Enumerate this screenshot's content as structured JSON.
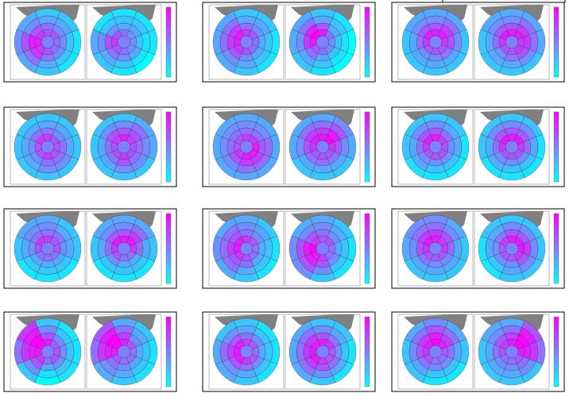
{
  "chart_data": {
    "type": "polar-heatmap",
    "vlim": [
      0,
      9
    ],
    "colors": [
      "#00ffff",
      "#ff00ff"
    ],
    "panels": [
      {
        "plots": [
          {
            "values": [
              [
                6,
                6,
                5,
                5,
                6,
                7,
                8,
                7
              ],
              [
                5,
                4,
                4,
                4,
                5,
                7,
                8,
                6
              ],
              [
                3,
                3,
                2,
                2,
                3,
                5,
                6,
                4
              ],
              [
                2,
                2,
                1,
                1,
                2,
                3,
                4,
                3
              ]
            ]
          },
          {
            "values": [
              [
                5,
                4,
                4,
                4,
                5,
                6,
                7,
                6
              ],
              [
                3,
                3,
                2,
                3,
                4,
                5,
                6,
                4
              ],
              [
                2,
                2,
                1,
                1,
                2,
                3,
                4,
                2
              ],
              [
                1,
                1,
                1,
                0,
                1,
                2,
                3,
                1
              ]
            ]
          }
        ]
      },
      {
        "plots": [
          {
            "values": [
              [
                7,
                6,
                5,
                5,
                6,
                7,
                8,
                8
              ],
              [
                5,
                4,
                3,
                3,
                4,
                6,
                7,
                7
              ],
              [
                3,
                3,
                2,
                2,
                3,
                4,
                5,
                5
              ],
              [
                2,
                2,
                1,
                1,
                2,
                3,
                3,
                3
              ]
            ]
          },
          {
            "values": [
              [
                8,
                5,
                4,
                4,
                5,
                6,
                8,
                9
              ],
              [
                6,
                3,
                2,
                2,
                3,
                5,
                7,
                8
              ],
              [
                3,
                2,
                1,
                1,
                2,
                3,
                4,
                5
              ],
              [
                2,
                1,
                0,
                0,
                1,
                2,
                3,
                3
              ]
            ]
          }
        ]
      },
      {
        "plots": [
          {
            "values": [
              [
                8,
                8,
                7,
                6,
                6,
                6,
                7,
                8
              ],
              [
                6,
                7,
                6,
                5,
                4,
                4,
                5,
                6
              ],
              [
                4,
                5,
                4,
                3,
                3,
                3,
                3,
                4
              ],
              [
                3,
                3,
                2,
                2,
                2,
                2,
                2,
                3
              ]
            ]
          },
          {
            "values": [
              [
                8,
                8,
                7,
                7,
                6,
                6,
                7,
                8
              ],
              [
                6,
                7,
                7,
                6,
                5,
                4,
                5,
                6
              ],
              [
                4,
                5,
                5,
                4,
                3,
                3,
                3,
                4
              ],
              [
                3,
                3,
                3,
                2,
                2,
                2,
                2,
                3
              ]
            ]
          }
        ]
      },
      {
        "plots": [
          {
            "values": [
              [
                7,
                6,
                6,
                6,
                7,
                6,
                6,
                7
              ],
              [
                5,
                4,
                5,
                5,
                5,
                4,
                4,
                5
              ],
              [
                3,
                3,
                3,
                4,
                4,
                3,
                3,
                3
              ],
              [
                2,
                2,
                2,
                2,
                2,
                2,
                2,
                2
              ]
            ]
          },
          {
            "values": [
              [
                8,
                7,
                6,
                6,
                7,
                6,
                6,
                7
              ],
              [
                6,
                6,
                5,
                5,
                6,
                5,
                5,
                6
              ],
              [
                4,
                5,
                4,
                4,
                4,
                3,
                3,
                4
              ],
              [
                2,
                3,
                3,
                2,
                2,
                2,
                2,
                2
              ]
            ]
          }
        ]
      },
      {
        "plots": [
          {
            "values": [
              [
                7,
                7,
                8,
                8,
                8,
                7,
                6,
                6
              ],
              [
                5,
                5,
                6,
                7,
                7,
                6,
                5,
                5
              ],
              [
                4,
                4,
                5,
                5,
                5,
                4,
                4,
                4
              ],
              [
                3,
                3,
                3,
                3,
                3,
                3,
                3,
                3
              ]
            ]
          },
          {
            "values": [
              [
                8,
                9,
                7,
                6,
                6,
                6,
                7,
                8
              ],
              [
                7,
                8,
                6,
                5,
                5,
                5,
                6,
                7
              ],
              [
                5,
                6,
                4,
                3,
                3,
                3,
                4,
                5
              ],
              [
                3,
                4,
                3,
                2,
                2,
                2,
                3,
                3
              ]
            ]
          }
        ]
      },
      {
        "plots": [
          {
            "values": [
              [
                8,
                7,
                6,
                6,
                6,
                6,
                7,
                8
              ],
              [
                6,
                5,
                4,
                4,
                4,
                4,
                5,
                6
              ],
              [
                4,
                3,
                3,
                2,
                2,
                3,
                3,
                4
              ],
              [
                2,
                2,
                1,
                1,
                1,
                1,
                2,
                2
              ]
            ]
          },
          {
            "values": [
              [
                8,
                8,
                7,
                6,
                6,
                6,
                7,
                8
              ],
              [
                6,
                6,
                5,
                4,
                4,
                4,
                5,
                6
              ],
              [
                4,
                4,
                3,
                2,
                2,
                3,
                3,
                4
              ],
              [
                2,
                2,
                1,
                1,
                1,
                1,
                2,
                2
              ]
            ]
          }
        ]
      },
      {
        "plots": [
          {
            "values": [
              [
                7,
                6,
                6,
                5,
                5,
                5,
                6,
                7
              ],
              [
                5,
                5,
                4,
                3,
                3,
                3,
                4,
                5
              ],
              [
                4,
                3,
                3,
                2,
                2,
                2,
                3,
                4
              ],
              [
                3,
                2,
                2,
                1,
                1,
                1,
                2,
                3
              ]
            ]
          },
          {
            "values": [
              [
                8,
                8,
                7,
                5,
                5,
                6,
                7,
                8
              ],
              [
                6,
                7,
                5,
                3,
                3,
                4,
                5,
                6
              ],
              [
                4,
                5,
                3,
                2,
                2,
                2,
                3,
                4
              ],
              [
                3,
                3,
                2,
                1,
                1,
                1,
                2,
                3
              ]
            ]
          }
        ]
      },
      {
        "plots": [
          {
            "values": [
              [
                7,
                6,
                5,
                5,
                6,
                7,
                8,
                8
              ],
              [
                5,
                4,
                3,
                3,
                5,
                6,
                7,
                6
              ],
              [
                4,
                3,
                2,
                2,
                3,
                5,
                5,
                5
              ],
              [
                3,
                2,
                1,
                1,
                2,
                3,
                4,
                3
              ]
            ]
          },
          {
            "values": [
              [
                6,
                6,
                5,
                5,
                7,
                8,
                9,
                7
              ],
              [
                5,
                4,
                3,
                4,
                6,
                8,
                8,
                6
              ],
              [
                4,
                3,
                2,
                2,
                4,
                6,
                6,
                4
              ],
              [
                3,
                2,
                1,
                1,
                2,
                4,
                4,
                3
              ]
            ]
          }
        ]
      },
      {
        "plots": [
          {
            "values": [
              [
                8,
                7,
                7,
                6,
                6,
                6,
                7,
                8
              ],
              [
                7,
                6,
                5,
                4,
                4,
                5,
                6,
                7
              ],
              [
                5,
                4,
                3,
                3,
                3,
                3,
                4,
                5
              ],
              [
                4,
                3,
                2,
                2,
                2,
                2,
                3,
                4
              ]
            ]
          },
          {
            "values": [
              [
                8,
                8,
                8,
                7,
                6,
                6,
                6,
                7
              ],
              [
                6,
                6,
                7,
                6,
                4,
                4,
                4,
                5
              ],
              [
                4,
                4,
                4,
                4,
                3,
                2,
                3,
                3
              ],
              [
                2,
                2,
                2,
                2,
                2,
                1,
                1,
                2
              ]
            ]
          }
        ]
      },
      {
        "plots": [
          {
            "values": [
              [
                8,
                6,
                6,
                6,
                5,
                7,
                8,
                9
              ],
              [
                6,
                4,
                4,
                4,
                3,
                6,
                8,
                9
              ],
              [
                4,
                2,
                2,
                2,
                1,
                4,
                7,
                8
              ],
              [
                2,
                1,
                1,
                1,
                0,
                2,
                5,
                7
              ]
            ]
          },
          {
            "values": [
              [
                8,
                6,
                5,
                5,
                5,
                6,
                8,
                9
              ],
              [
                7,
                4,
                3,
                3,
                4,
                5,
                8,
                9
              ],
              [
                5,
                3,
                2,
                2,
                3,
                4,
                7,
                8
              ],
              [
                3,
                2,
                1,
                1,
                2,
                3,
                5,
                6
              ]
            ]
          }
        ]
      },
      {
        "plots": [
          {
            "values": [
              [
                7,
                6,
                5,
                6,
                7,
                8,
                8,
                8
              ],
              [
                5,
                4,
                3,
                4,
                5,
                6,
                7,
                6
              ],
              [
                3,
                2,
                2,
                2,
                3,
                4,
                5,
                4
              ],
              [
                2,
                1,
                1,
                1,
                2,
                3,
                3,
                2
              ]
            ]
          },
          {
            "values": [
              [
                8,
                7,
                6,
                6,
                7,
                8,
                8,
                8
              ],
              [
                6,
                5,
                4,
                5,
                6,
                7,
                7,
                7
              ],
              [
                4,
                3,
                2,
                3,
                4,
                5,
                5,
                5
              ],
              [
                2,
                2,
                1,
                1,
                2,
                3,
                3,
                3
              ]
            ]
          }
        ]
      },
      {
        "plots": [
          {
            "values": [
              [
                9,
                8,
                6,
                5,
                5,
                6,
                7,
                8
              ],
              [
                8,
                7,
                5,
                4,
                4,
                5,
                6,
                7
              ],
              [
                6,
                5,
                3,
                2,
                2,
                3,
                4,
                5
              ],
              [
                4,
                3,
                2,
                1,
                1,
                2,
                2,
                3
              ]
            ]
          },
          {
            "values": [
              [
                8,
                9,
                8,
                6,
                5,
                5,
                6,
                7
              ],
              [
                7,
                9,
                8,
                5,
                4,
                4,
                5,
                6
              ],
              [
                5,
                8,
                7,
                4,
                3,
                3,
                3,
                4
              ],
              [
                3,
                6,
                5,
                2,
                2,
                2,
                2,
                3
              ]
            ]
          }
        ]
      }
    ]
  }
}
